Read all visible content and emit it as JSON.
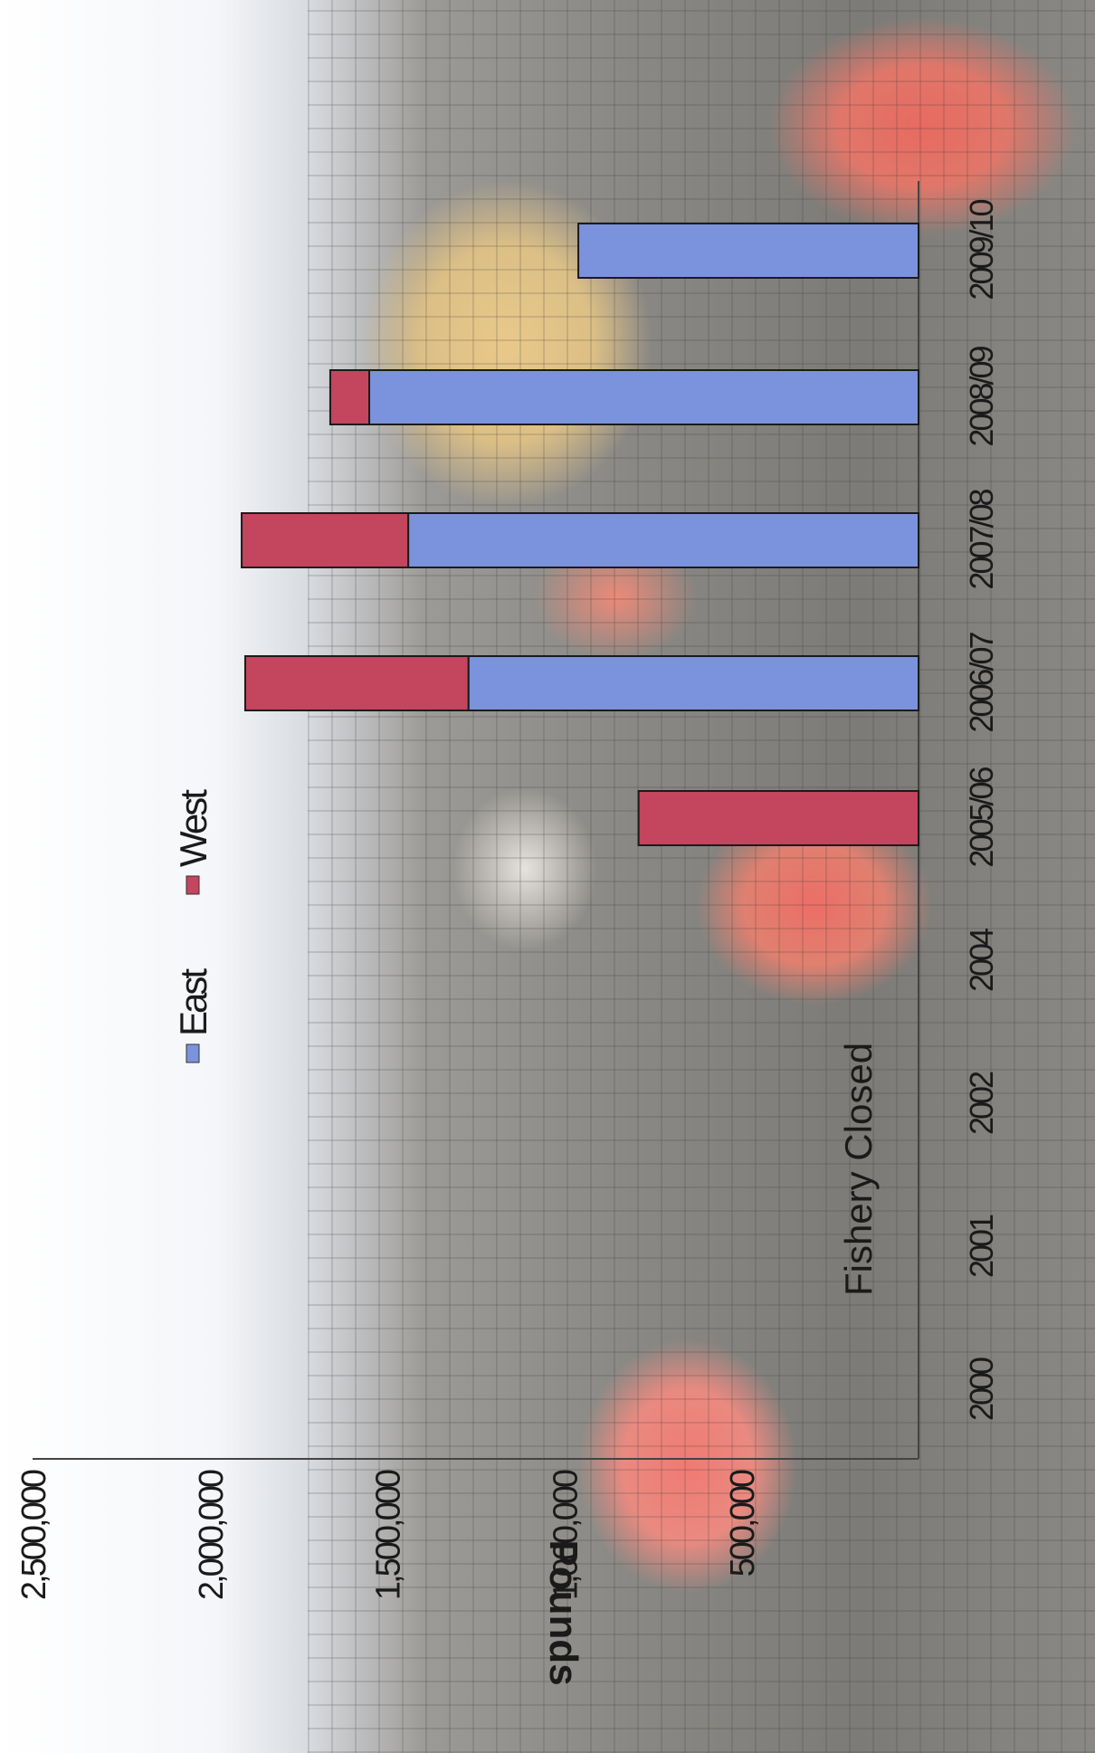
{
  "chart_data": {
    "type": "bar",
    "stacked": true,
    "orientation": "vertical",
    "display_rotation": "rotated 90 degrees clockwise",
    "title": "",
    "xlabel": "",
    "ylabel": "Pounds",
    "ylim": [
      0,
      2500000
    ],
    "y_ticks": [
      "2,500,000",
      "2,000,000",
      "1,500,000",
      "1,000,000",
      "500,000"
    ],
    "categories": [
      "2000",
      "2001",
      "2002",
      "2004",
      "2005/06",
      "2006/07",
      "2007/08",
      "2008/09",
      "2009/10"
    ],
    "series": [
      {
        "name": "East",
        "color": "#7b93dc",
        "values": [
          0,
          0,
          0,
          0,
          0,
          1270000,
          1440000,
          1550000,
          960000
        ]
      },
      {
        "name": "West",
        "color": "#c3455e",
        "values": [
          0,
          0,
          0,
          0,
          790000,
          630000,
          470000,
          110000,
          0
        ]
      }
    ],
    "annotations": [
      {
        "text": "Fishery Closed"
      }
    ],
    "legend_position": "top",
    "grid": false
  }
}
